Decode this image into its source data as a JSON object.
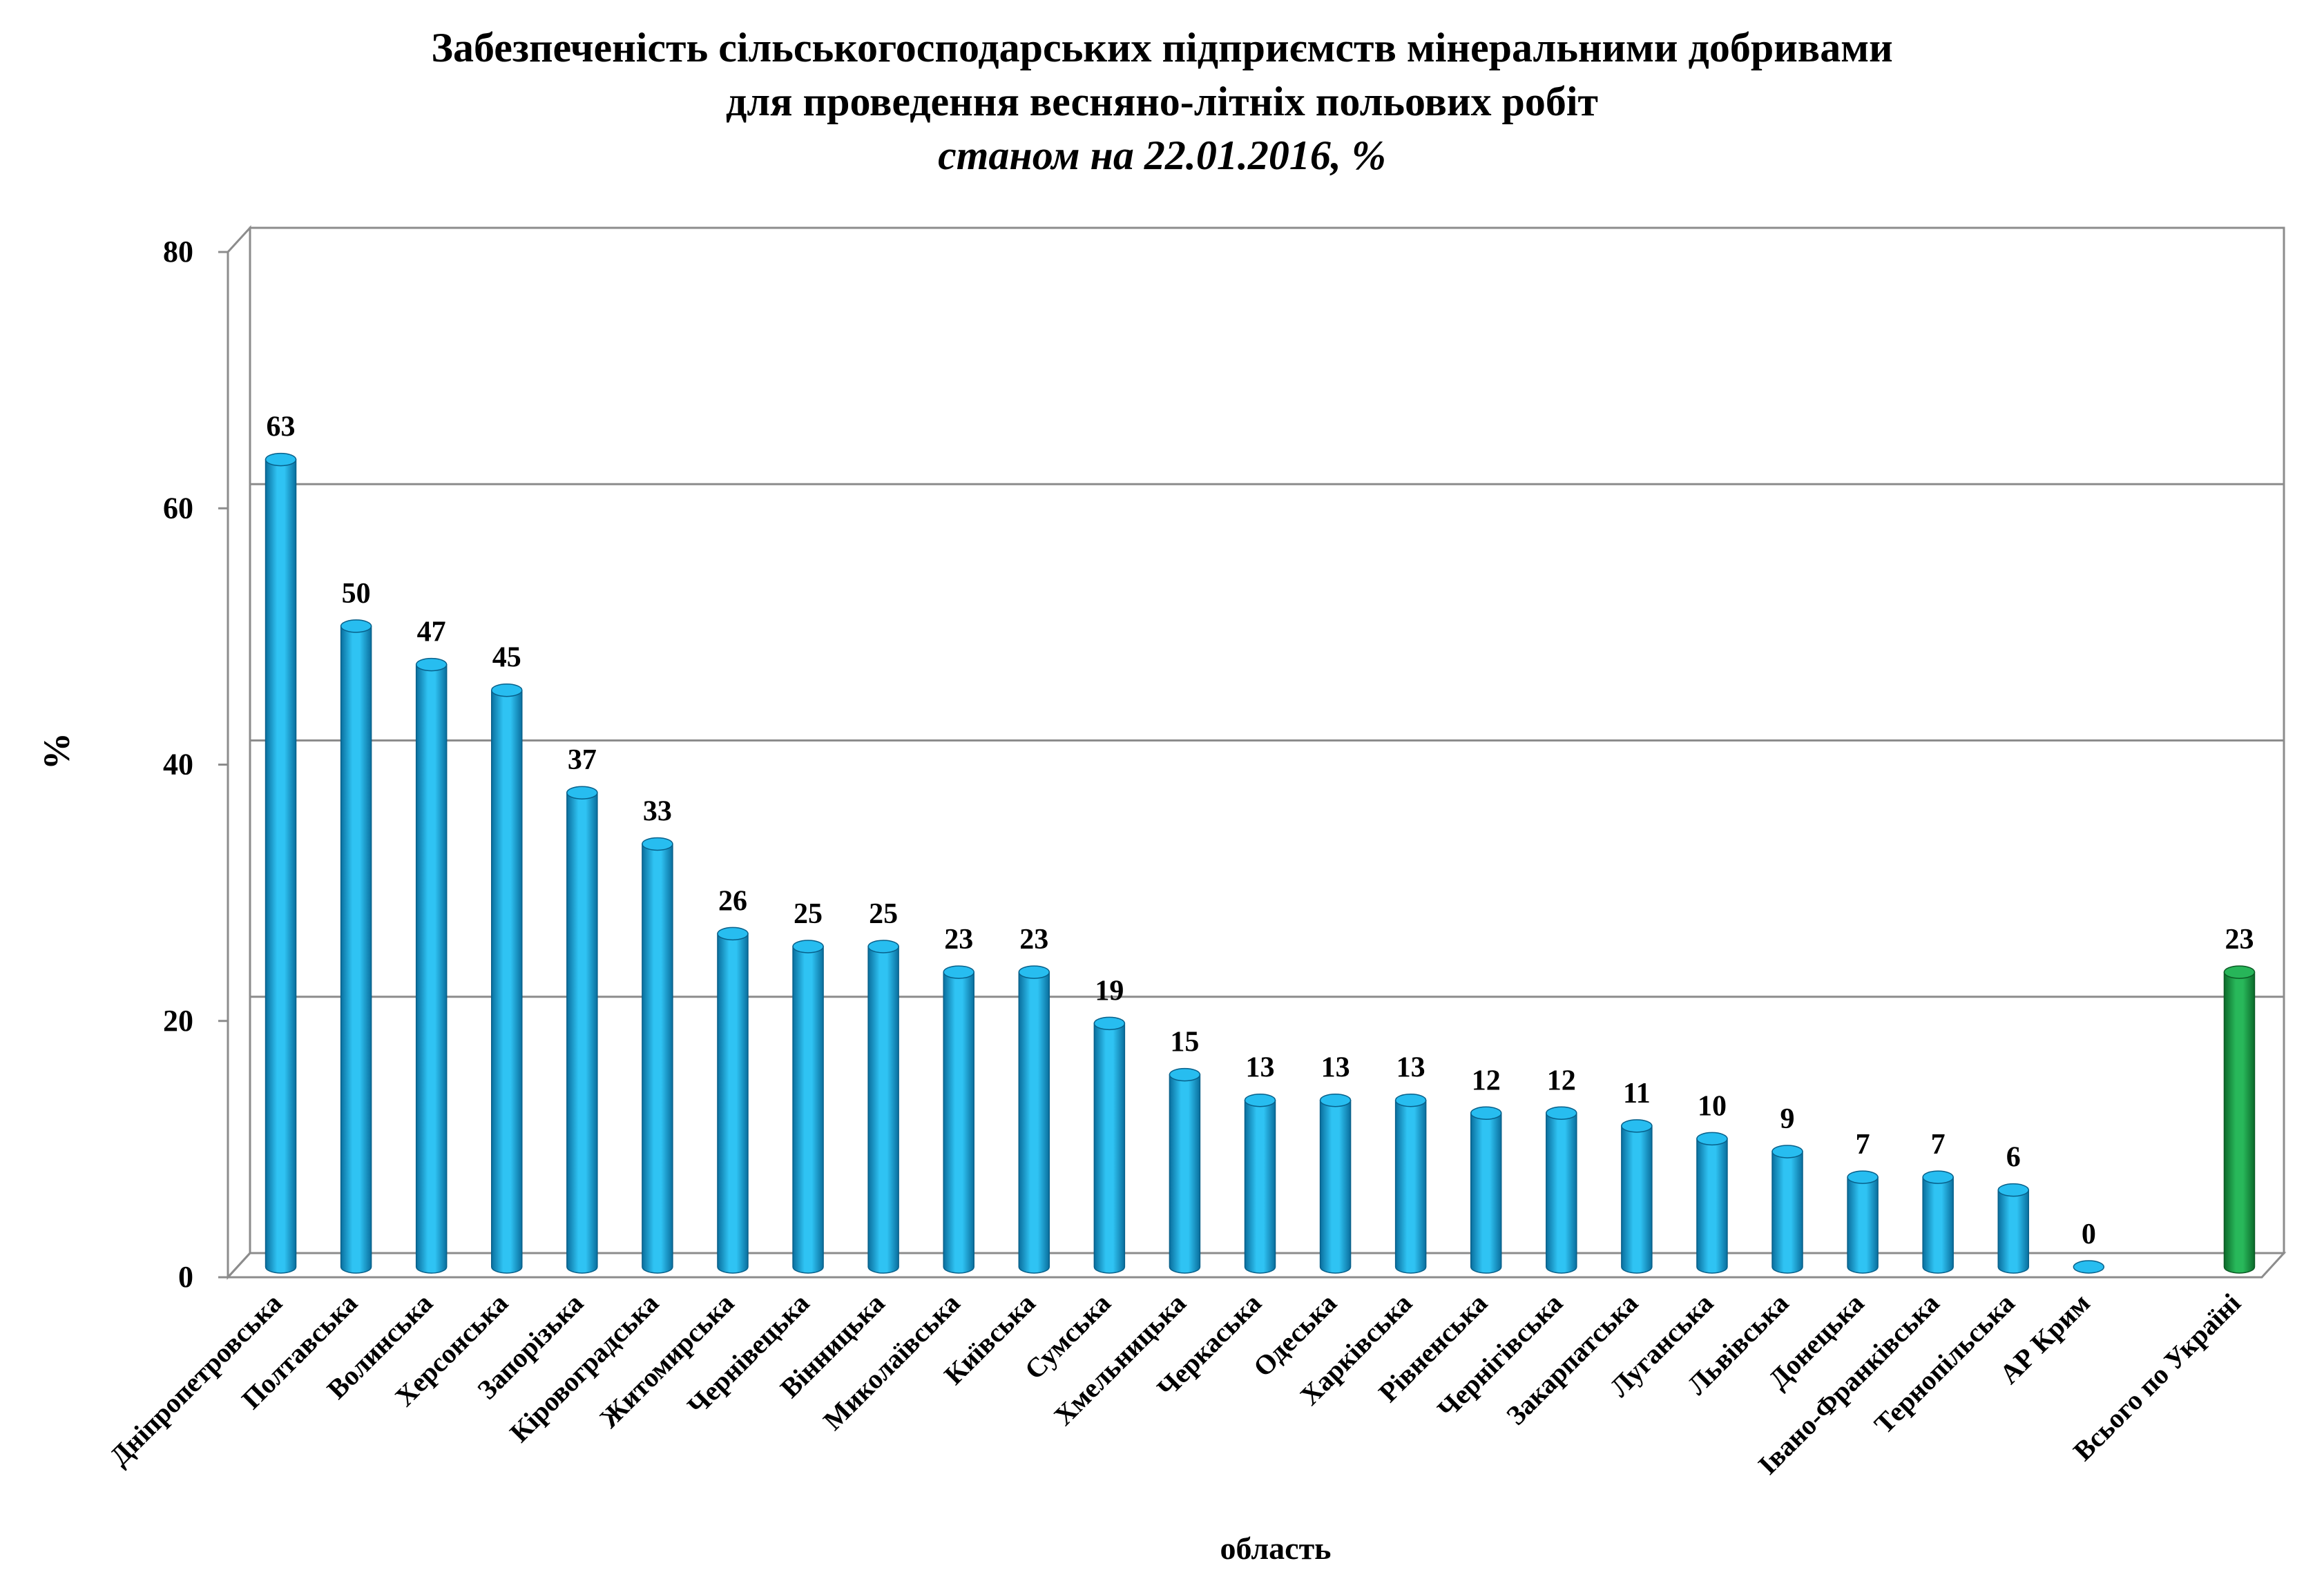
{
  "chart_data": {
    "type": "bar",
    "title": "Забезпеченість сільськогосподарських підприємств мінеральними добривами",
    "title_line2": "для проведення весняно-літніх польових робіт",
    "subtitle": "станом на 22.01.2016, %",
    "xlabel": "область",
    "ylabel": "%",
    "ylim": [
      0,
      80
    ],
    "yticks": [
      0,
      20,
      40,
      60,
      80
    ],
    "grid": true,
    "categories": [
      "Дніпропетровська",
      "Полтавська",
      "Волинська",
      "Херсонська",
      "Запорізька",
      "Кіровоградська",
      "Житомирська",
      "Чернівецька",
      "Вінницька",
      "Миколаївська",
      "Київська",
      "Сумська",
      "Хмельницька",
      "Черкаська",
      "Одеська",
      "Харківська",
      "Рівненська",
      "Чернігівська",
      "Закарпатська",
      "Луганська",
      "Львівська",
      "Донецька",
      "Івано-Франківська",
      "Тернопільська",
      "АР Крим",
      "",
      "Всього по Україні"
    ],
    "values": [
      63,
      50,
      47,
      45,
      37,
      33,
      26,
      25,
      25,
      23,
      23,
      19,
      15,
      13,
      13,
      13,
      12,
      12,
      11,
      10,
      9,
      7,
      7,
      6,
      0,
      null,
      23
    ],
    "colors": {
      "region": "#1AAEE6",
      "total": "#1FA64B",
      "grid": "#8C8C8C"
    }
  }
}
